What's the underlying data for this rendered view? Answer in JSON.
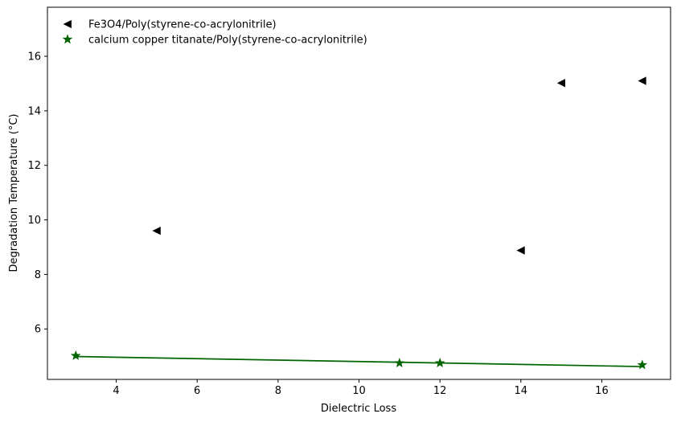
{
  "chart_data": {
    "type": "scatter",
    "title": "",
    "xlabel": "Dielectric Loss",
    "ylabel": "Degradation Temperature (°C)",
    "xlim": [
      2.3,
      17.7
    ],
    "ylim": [
      4.15,
      17.8
    ],
    "xticks": [
      4,
      6,
      8,
      10,
      12,
      14,
      16
    ],
    "yticks": [
      6,
      8,
      10,
      12,
      14,
      16
    ],
    "grid": false,
    "legend_position": "top-left",
    "series": [
      {
        "name": "Fe3O4/Poly(styrene-co-acrylonitrile)",
        "marker": "triangle-left",
        "color": "#000000",
        "points": [
          {
            "x": 5,
            "y": 9.6
          },
          {
            "x": 14,
            "y": 8.88
          },
          {
            "x": 15,
            "y": 15.02
          },
          {
            "x": 17,
            "y": 15.1
          }
        ]
      },
      {
        "name": "calcium copper titanate/Poly(styrene-co-acrylonitrile)",
        "marker": "star",
        "color": "#006400",
        "points": [
          {
            "x": 3,
            "y": 5.02
          },
          {
            "x": 11,
            "y": 4.75
          },
          {
            "x": 12,
            "y": 4.75
          },
          {
            "x": 17,
            "y": 4.68
          }
        ],
        "fit_line": [
          {
            "x": 3,
            "y": 4.99
          },
          {
            "x": 17,
            "y": 4.62
          }
        ]
      }
    ]
  }
}
